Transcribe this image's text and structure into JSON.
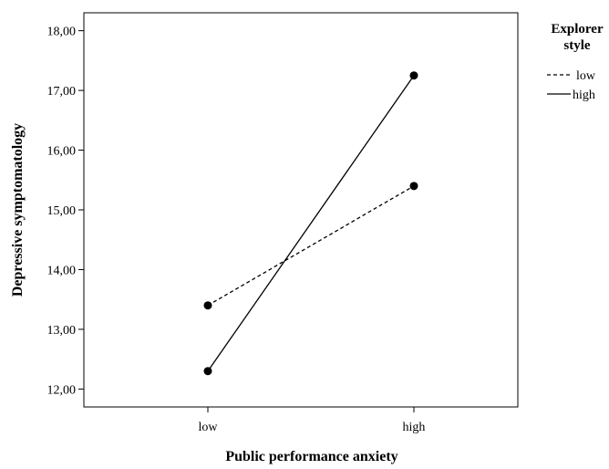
{
  "chart_data": {
    "type": "line",
    "title": "",
    "xlabel": "Public performance anxiety",
    "ylabel": "Depressive symptomatology",
    "categories": [
      "low",
      "high"
    ],
    "ylim": [
      11.7,
      18.3
    ],
    "y_ticks": [
      12,
      13,
      14,
      15,
      16,
      17,
      18
    ],
    "y_tick_labels": [
      "12,00",
      "13,00",
      "14,00",
      "15,00",
      "16,00",
      "17,00",
      "18,00"
    ],
    "grid": false,
    "legend": {
      "title": "Explorer style",
      "title_lines": [
        "Explorer",
        "style"
      ],
      "position": "right"
    },
    "series": [
      {
        "name": "low",
        "style": "dashed",
        "values": [
          13.4,
          15.4
        ]
      },
      {
        "name": "high",
        "style": "solid",
        "values": [
          12.3,
          17.25
        ]
      }
    ]
  },
  "colors": {
    "line": "#000000",
    "background": "#ffffff"
  }
}
